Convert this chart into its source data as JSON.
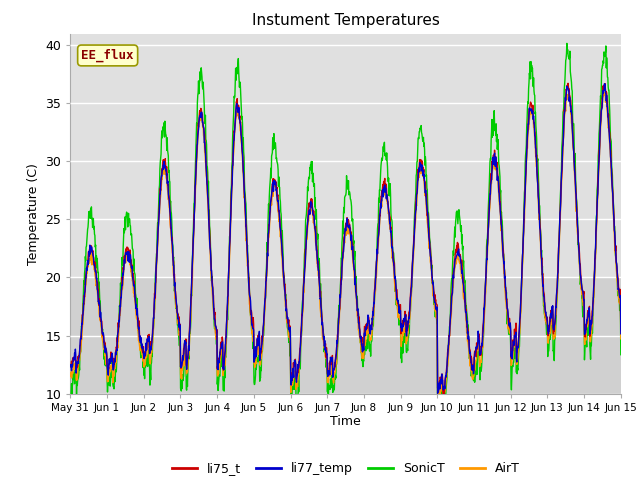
{
  "title": "Instument Temperatures",
  "xlabel": "Time",
  "ylabel": "Temperature (C)",
  "ylim": [
    10,
    41
  ],
  "yticks": [
    10,
    15,
    20,
    25,
    30,
    35,
    40
  ],
  "fig_bg_color": "#ffffff",
  "plot_bg_color": "#e8e8e8",
  "plot_bg_upper": "#dcdcdc",
  "plot_bg_lower": "#c8c8c8",
  "colors": {
    "li75_t": "#cc0000",
    "li77_temp": "#0000cc",
    "SonicT": "#00cc00",
    "AirT": "#ff9900"
  },
  "xtick_labels": [
    "May 31",
    "Jun 1",
    "Jun 2",
    "Jun 3",
    "Jun 4",
    "Jun 5",
    "Jun 6",
    "Jun 7",
    "Jun 8",
    "Jun 9",
    "Jun 10",
    "Jun 11",
    "Jun 12",
    "Jun 13",
    "Jun 14",
    "Jun 15"
  ],
  "annotation_text": "EE_flux",
  "legend_colors": [
    "#cc0000",
    "#0000cc",
    "#00cc00",
    "#ff9900"
  ],
  "legend_labels": [
    "li75_t",
    "li77_temp",
    "SonicT",
    "AirT"
  ],
  "n_days": 15,
  "pts_per_day": 96,
  "day_mins_base": [
    12.0,
    12.0,
    13.0,
    12.0,
    12.0,
    13.0,
    11.0,
    11.5,
    15.0,
    15.0,
    10.0,
    13.0,
    13.0,
    15.0,
    15.0
  ],
  "day_maxs_base": [
    23.0,
    23.0,
    30.5,
    35.0,
    35.5,
    29.0,
    27.0,
    25.5,
    28.5,
    30.5,
    23.0,
    31.0,
    35.5,
    37.0,
    37.0
  ],
  "sonic_extra_max": 2.5,
  "sonic_extra_min": -1.5,
  "noise_seed": 42
}
